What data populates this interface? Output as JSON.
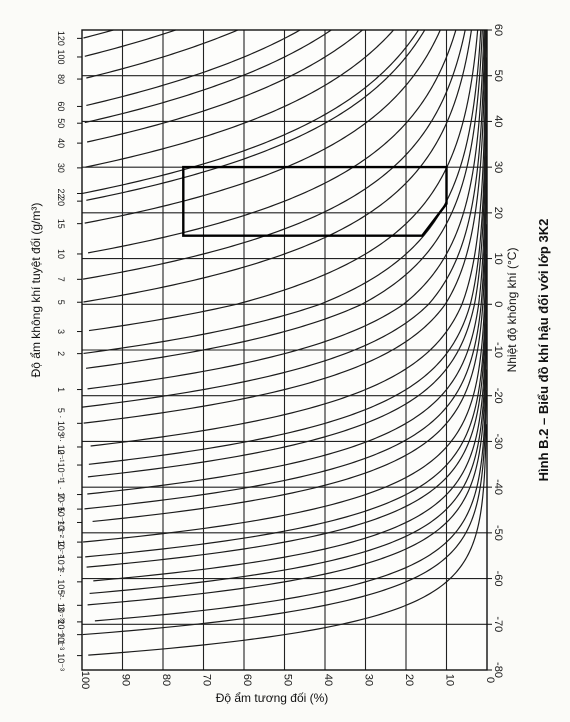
{
  "figure": {
    "caption": "Hình B.2 – Biểu đồ khí hậu đối với lớp 3K2"
  },
  "chart_data": {
    "type": "line",
    "title": "",
    "caption": "Hình B.2 – Biểu đồ khí hậu đối với lớp 3K2",
    "x_axis": {
      "label": "Độ ẩm tương đối (%)",
      "range": [
        100,
        0
      ],
      "ticks": [
        100,
        90,
        80,
        70,
        60,
        50,
        40,
        30,
        20,
        10,
        0
      ],
      "tick_labels": [
        "100",
        "90",
        "80",
        "70",
        "60",
        "50",
        "40",
        "30",
        "20",
        "10",
        "0"
      ]
    },
    "y_axis_right": {
      "label": "Nhiệt độ không khí (°C)",
      "range": [
        -80,
        60
      ],
      "ticks": [
        -80,
        -70,
        -60,
        -50,
        -40,
        -30,
        -20,
        -10,
        0,
        10,
        20,
        30,
        40,
        50,
        60
      ],
      "tick_labels": [
        "-80",
        "-70",
        "-60",
        "-50",
        "-40",
        "-30",
        "-20",
        "-10",
        "0",
        "10",
        "20",
        "30",
        "40",
        "50",
        "60"
      ]
    },
    "y_axis_left": {
      "label": "Độ ẩm không khí tuyệt đối (g/m³)",
      "scale": "log",
      "ticks": [
        0.001,
        0.002,
        0.003,
        0.005,
        0.01,
        0.02,
        0.03,
        0.05,
        0.07,
        0.1,
        0.2,
        0.3,
        0.5,
        1,
        2,
        3,
        5,
        7,
        10,
        15,
        20,
        22,
        30,
        40,
        50,
        60,
        80,
        100,
        120
      ],
      "tick_labels": [
        "1 · 10⁻³",
        "2 · 10⁻³",
        "3 · 10⁻³",
        "5 · 10⁻³",
        "1 · 10⁻²",
        "2 · 10⁻²",
        "3 · 10⁻²",
        "5 · 10⁻²",
        "7 · 10⁻²",
        "1 · 10⁻¹",
        "2 · 10⁻¹",
        "3 · 10⁻¹",
        "5 · 10⁻¹",
        "1",
        "2",
        "3",
        "5",
        "7",
        "10",
        "15",
        "20",
        "22",
        "30",
        "40",
        "50",
        "60",
        "80",
        "100",
        "120"
      ]
    },
    "grid": true,
    "curves": {
      "description": "constant absolute humidity isolines",
      "absolute_humidity_gm3": [
        0.001,
        0.002,
        0.003,
        0.005,
        0.007,
        0.01,
        0.015,
        0.02,
        0.03,
        0.05,
        0.07,
        0.1,
        0.15,
        0.2,
        0.3,
        0.5,
        0.7,
        1,
        1.5,
        2,
        3,
        5,
        7,
        10,
        15,
        20,
        22,
        30,
        40,
        50,
        60,
        80,
        100,
        120
      ]
    },
    "climate_zone": {
      "name": "3K2",
      "polygon": [
        [
          75,
          30
        ],
        [
          10,
          30
        ],
        [
          10,
          22
        ],
        [
          16,
          15
        ],
        [
          75,
          15
        ]
      ]
    }
  }
}
